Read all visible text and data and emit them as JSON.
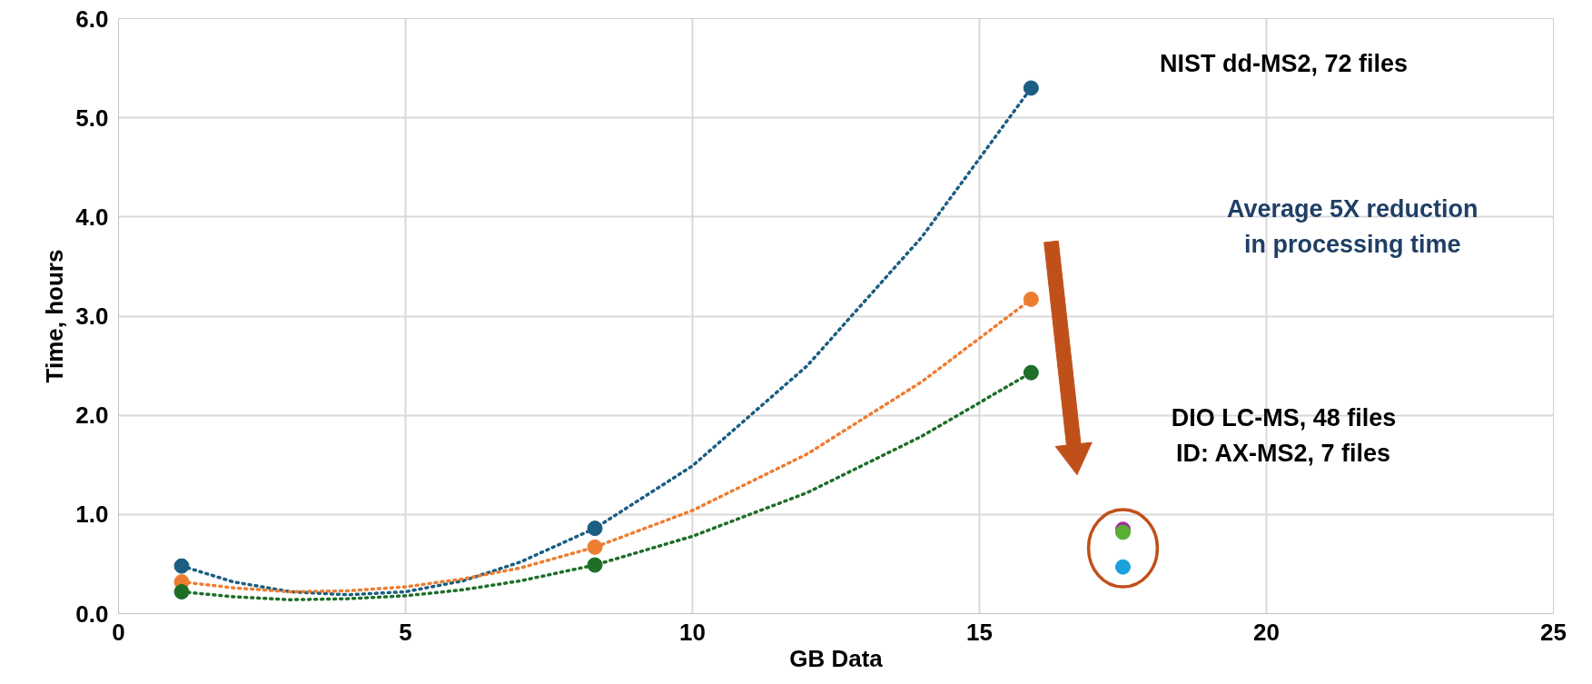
{
  "chart_data": {
    "type": "scatter",
    "xlabel": "GB Data",
    "ylabel": "Time, hours",
    "xlim": [
      0,
      25
    ],
    "xticks": [
      0,
      5,
      10,
      15,
      20,
      25
    ],
    "ylim": [
      0,
      6
    ],
    "yticks": [
      {
        "value": 0,
        "label": "0.0"
      },
      {
        "value": 1,
        "label": "1.0"
      },
      {
        "value": 2,
        "label": "2.0"
      },
      {
        "value": 3,
        "label": "3.0"
      },
      {
        "value": 4,
        "label": "4.0"
      },
      {
        "value": 5,
        "label": "5.0"
      },
      {
        "value": 6,
        "label": "6.0"
      }
    ],
    "grid": true,
    "marker": "circle",
    "series": [
      {
        "type": "line",
        "line_style": "dotted",
        "marker": "none",
        "color": "#1b5e82",
        "x": [
          1.1,
          2,
          3,
          4,
          5,
          6,
          7,
          8.3,
          10,
          12,
          14,
          15.9
        ],
        "values": [
          0.48,
          0.32,
          0.22,
          0.19,
          0.22,
          0.33,
          0.52,
          0.86,
          1.49,
          2.5,
          3.8,
          5.3
        ]
      },
      {
        "type": "line",
        "line_style": "dotted",
        "marker": "none",
        "color": "#ed7d31",
        "x": [
          1.1,
          2,
          3,
          4,
          5,
          6,
          7,
          8.3,
          10,
          12,
          14,
          15.9
        ],
        "values": [
          0.32,
          0.26,
          0.22,
          0.23,
          0.27,
          0.35,
          0.46,
          0.67,
          1.04,
          1.61,
          2.34,
          3.17
        ]
      },
      {
        "type": "line",
        "line_style": "dotted",
        "marker": "none",
        "color": "#1e6e28",
        "x": [
          1.1,
          2,
          3,
          4,
          5,
          6,
          7,
          8.3,
          10,
          12,
          14,
          15.9
        ],
        "values": [
          0.22,
          0.17,
          0.14,
          0.15,
          0.18,
          0.24,
          0.33,
          0.49,
          0.78,
          1.22,
          1.79,
          2.43
        ]
      },
      {
        "color": "#1b5e82",
        "x": [
          1.1,
          8.3,
          15.9
        ],
        "values": [
          0.48,
          0.86,
          5.3
        ]
      },
      {
        "color": "#ed7d31",
        "x": [
          1.1,
          8.3,
          15.9
        ],
        "values": [
          0.32,
          0.67,
          3.17
        ]
      },
      {
        "color": "#1e6e28",
        "x": [
          1.1,
          8.3,
          15.9
        ],
        "values": [
          0.22,
          0.49,
          2.43
        ]
      },
      {
        "color": "#a0309a",
        "x": [
          17.5
        ],
        "values": [
          0.85
        ]
      },
      {
        "color": "#1aa0dc",
        "x": [
          17.5
        ],
        "values": [
          0.47
        ]
      },
      {
        "color": "#5aaf32",
        "x": [
          17.5
        ],
        "values": [
          0.82
        ]
      }
    ],
    "annotations": [
      "NIST dd-MS2, 72 files",
      "Average 5X reduction\nin processing time",
      "DIO LC-MS, 48 files\nID: AX-MS2, 7 files"
    ]
  }
}
